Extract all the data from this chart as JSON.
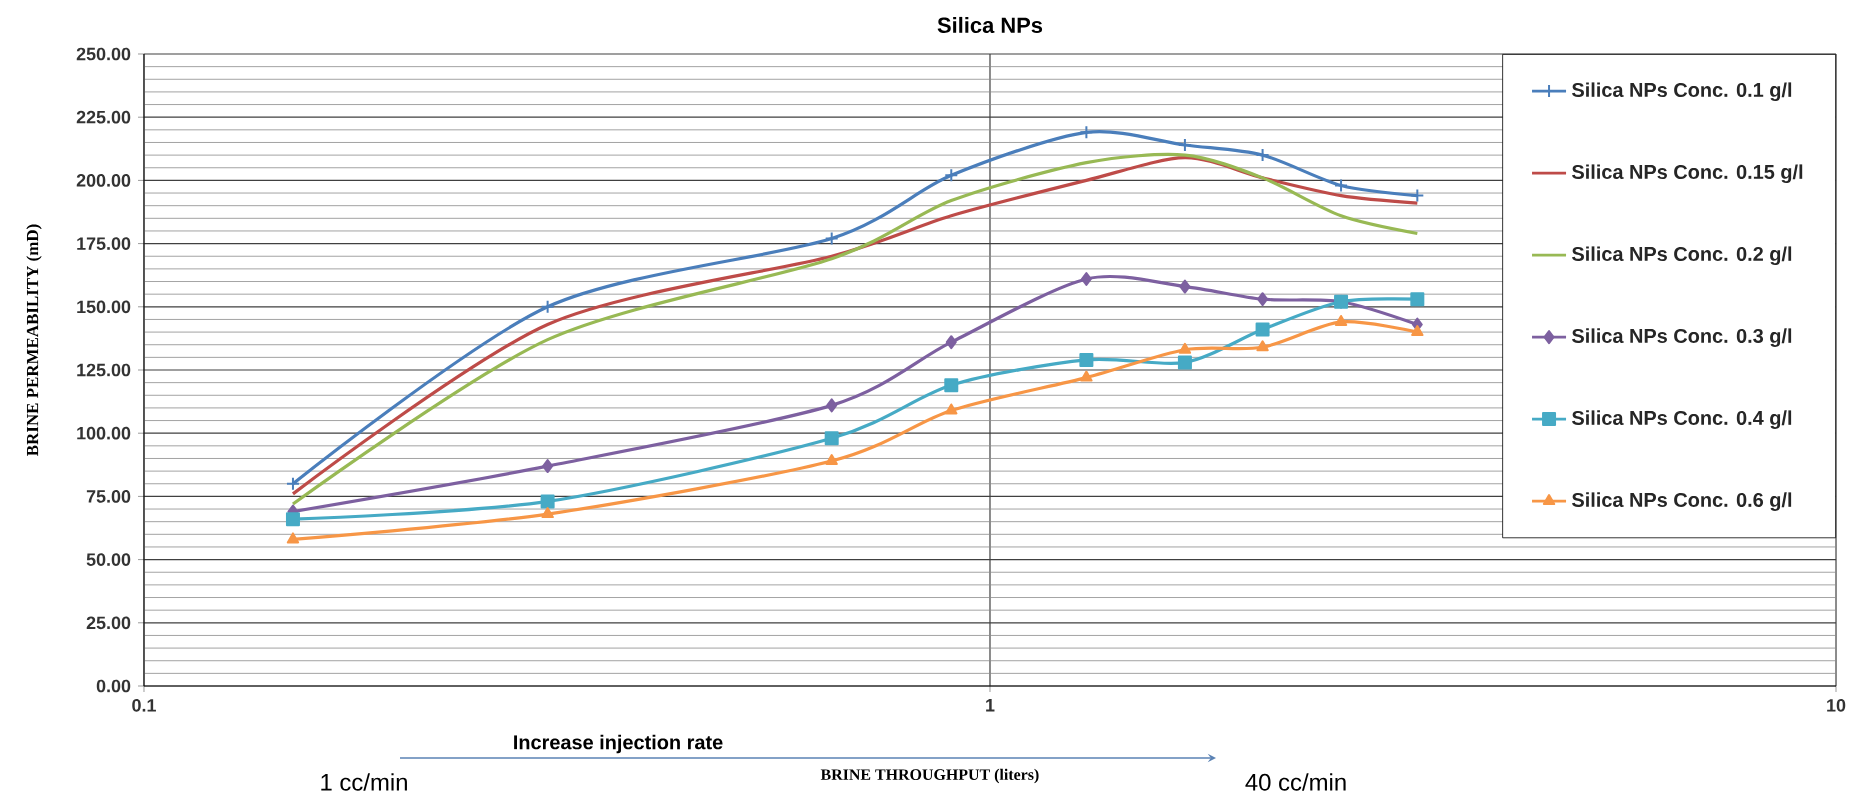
{
  "chart_data": {
    "type": "line",
    "title": "Silica NPs",
    "xlabel": "BRINE THROUGHPUT  (liters)",
    "ylabel": "BRINE PERMEABILITY  (mD)",
    "log": "x",
    "grid": true,
    "legend": "right",
    "xlim": [
      0.1,
      10
    ],
    "xticks": [
      {
        "value": 0.1,
        "label": "0.1"
      },
      {
        "value": 1,
        "label": "1"
      },
      {
        "value": 10,
        "label": "10"
      }
    ],
    "ylim": [
      0,
      250
    ],
    "yticks": [
      {
        "value": 0,
        "label": "0.00"
      },
      {
        "value": 25,
        "label": "25.00"
      },
      {
        "value": 50,
        "label": "50.00"
      },
      {
        "value": 75,
        "label": "75.00"
      },
      {
        "value": 100,
        "label": "100.00"
      },
      {
        "value": 125,
        "label": "125.00"
      },
      {
        "value": 150,
        "label": "150.00"
      },
      {
        "value": 175,
        "label": "175.00"
      },
      {
        "value": 200,
        "label": "200.00"
      },
      {
        "value": 225,
        "label": "225.00"
      },
      {
        "value": 250,
        "label": "250.00"
      }
    ],
    "x": [
      0.15,
      0.3,
      0.65,
      0.9,
      1.3,
      1.7,
      2.1,
      2.6,
      3.2
    ],
    "series": [
      {
        "name": "Silica NPs Conc. 0.1 g/l",
        "color": "#4a7ebb",
        "marker": "cross",
        "values": [
          80,
          150,
          177,
          202,
          219,
          214,
          210,
          198,
          194
        ]
      },
      {
        "name": "Silica NPs Conc. 0.15 g/l",
        "color": "#be4b48",
        "marker": "none",
        "values": [
          76,
          143,
          170,
          186,
          200,
          209,
          201,
          194,
          191
        ]
      },
      {
        "name": "Silica NPs Conc. 0.2 g/l",
        "color": "#98b954",
        "marker": "none",
        "values": [
          72,
          137,
          169,
          192,
          207,
          210,
          201,
          186,
          179
        ]
      },
      {
        "name": "Silica NPs Conc. 0.3 g/l",
        "color": "#7d60a0",
        "marker": "diamond",
        "values": [
          69,
          87,
          111,
          136,
          161,
          158,
          153,
          152,
          143
        ]
      },
      {
        "name": "Silica NPs Conc. 0.4 g/l",
        "color": "#46aac5",
        "marker": "square",
        "values": [
          66,
          73,
          98,
          119,
          129,
          128,
          141,
          152,
          153
        ]
      },
      {
        "name": "Silica NPs Conc. 0.6 g/l",
        "color": "#f79646",
        "marker": "triangle",
        "values": [
          58,
          68,
          89,
          109,
          122,
          133,
          134,
          144,
          140
        ]
      }
    ],
    "annotations": [
      "Increase injection rate",
      "1 cc/min",
      "40  cc/min"
    ]
  }
}
